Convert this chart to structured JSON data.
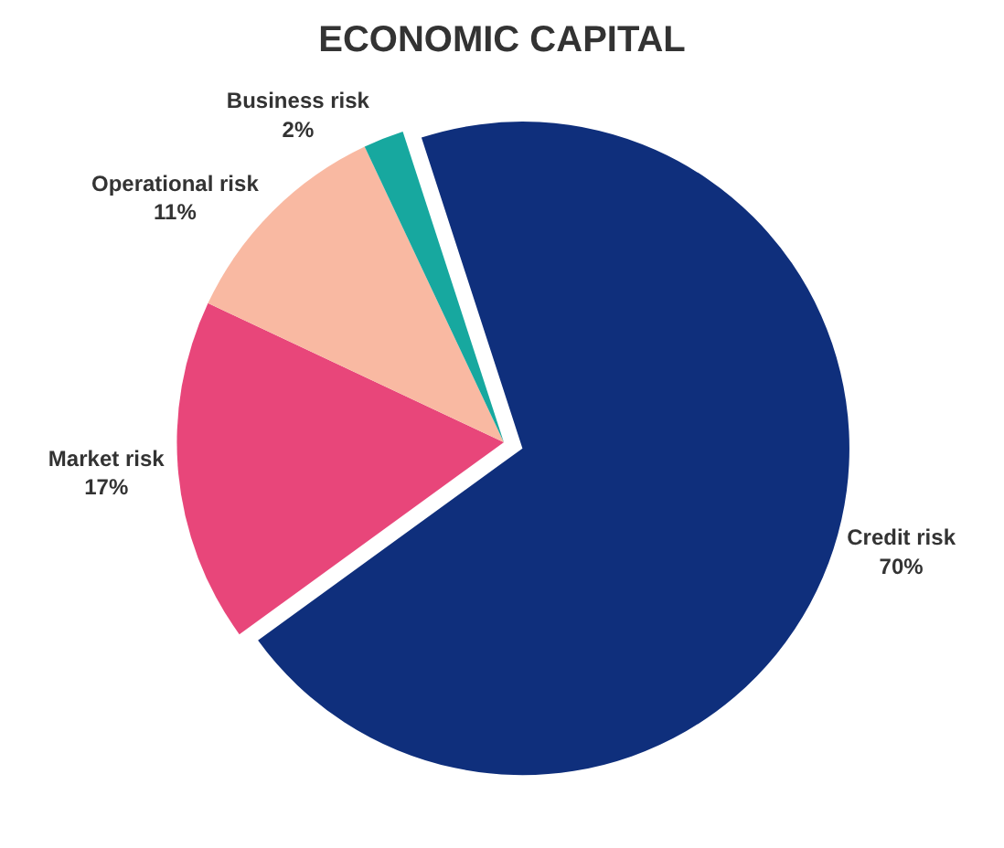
{
  "chart_data": {
    "type": "pie",
    "title": "ECONOMIC CAPITAL",
    "categories": [
      "Credit risk",
      "Market risk",
      "Operational risk",
      "Business risk"
    ],
    "values": [
      70,
      17,
      11,
      2
    ],
    "colors": [
      "#0f2f7c",
      "#e8467a",
      "#f9b9a2",
      "#17a89f"
    ],
    "value_labels": [
      "70%",
      "17%",
      "11%",
      "2%"
    ],
    "legend": false
  }
}
